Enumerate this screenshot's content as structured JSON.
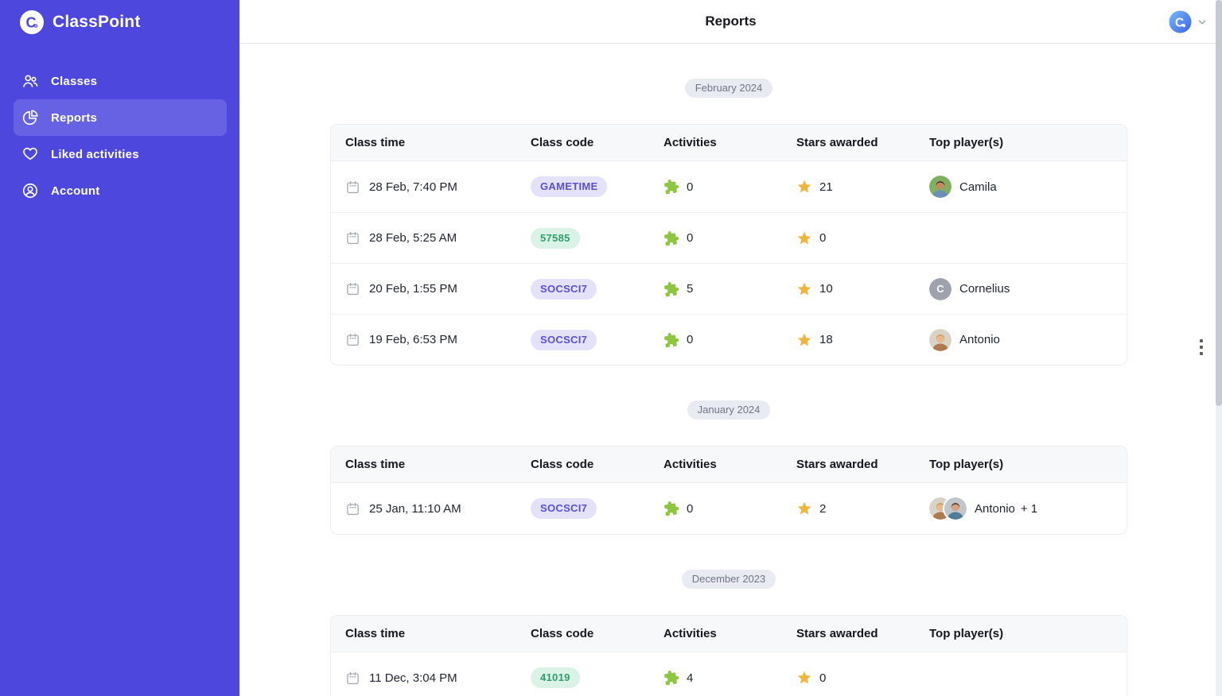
{
  "app": {
    "name": "ClassPoint"
  },
  "sidebar": {
    "items": [
      {
        "label": "Classes",
        "icon": "classes-icon",
        "active": false
      },
      {
        "label": "Reports",
        "icon": "reports-icon",
        "active": true
      },
      {
        "label": "Liked activities",
        "icon": "heart-icon",
        "active": false
      },
      {
        "label": "Account",
        "icon": "account-icon",
        "active": false
      }
    ]
  },
  "header": {
    "title": "Reports",
    "user_initial": "C"
  },
  "colors": {
    "sidebar_bg": "#4D47DE",
    "active_item_bg": "rgba(255,255,255,0.15)",
    "badge_purple_bg": "#E4E1FB",
    "badge_purple_text": "#5A4FD4",
    "badge_green_bg": "#DBF2E6",
    "badge_green_text": "#2E9D68",
    "puzzle_green": "#8DC63F",
    "star_yellow": "#F0B63C",
    "month_badge_bg": "#E9EBF2",
    "month_badge_text": "#6F7683"
  },
  "table": {
    "columns": [
      "Class time",
      "Class code",
      "Activities",
      "Stars awarded",
      "Top player(s)"
    ]
  },
  "sections": [
    {
      "month": "February 2024",
      "rows": [
        {
          "time": "28 Feb, 7:40 PM",
          "code": "GAMETIME",
          "code_color": "purple",
          "activities": "0",
          "stars": "21",
          "player_label": "Camila",
          "player_suffix": "",
          "avatars": [
            {
              "kind": "photo",
              "bg": "#7FAF63",
              "hair": "#33271F",
              "skin": "#C68A5E",
              "shirt": "#6C8FB8"
            }
          ]
        },
        {
          "time": "28 Feb, 5:25 AM",
          "code": "57585",
          "code_color": "green",
          "activities": "0",
          "stars": "0",
          "player_label": "",
          "player_suffix": "",
          "avatars": []
        },
        {
          "time": "20 Feb, 1:55 PM",
          "code": "SOCSCI7",
          "code_color": "purple",
          "activities": "5",
          "stars": "10",
          "player_label": "Cornelius",
          "player_suffix": "",
          "avatars": [
            {
              "kind": "letter",
              "letter": "C",
              "bg": "#9DA2AC"
            }
          ]
        },
        {
          "time": "19 Feb, 6:53 PM",
          "code": "SOCSCI7",
          "code_color": "purple",
          "activities": "0",
          "stars": "18",
          "player_label": "Antonio",
          "player_suffix": "",
          "avatars": [
            {
              "kind": "photo",
              "bg": "#D8D3C7",
              "hair": "#C89B55",
              "skin": "#E9B88C",
              "shirt": "#B07A4F"
            }
          ]
        }
      ]
    },
    {
      "month": "January 2024",
      "rows": [
        {
          "time": "25 Jan, 11:10 AM",
          "code": "SOCSCI7",
          "code_color": "purple",
          "activities": "0",
          "stars": "2",
          "player_label": "Antonio",
          "player_suffix": "+ 1",
          "avatars": [
            {
              "kind": "photo",
              "bg": "#D8D3C7",
              "hair": "#C89B55",
              "skin": "#E9B88C",
              "shirt": "#B07A4F"
            },
            {
              "kind": "photo",
              "bg": "#BFC7CC",
              "hair": "#3A3330",
              "skin": "#D9A27E",
              "shirt": "#4E7E96"
            }
          ]
        }
      ]
    },
    {
      "month": "December 2023",
      "rows": [
        {
          "time": "11 Dec, 3:04 PM",
          "code": "41019",
          "code_color": "green",
          "activities": "4",
          "stars": "0",
          "player_label": "",
          "player_suffix": "",
          "avatars": []
        }
      ]
    }
  ]
}
